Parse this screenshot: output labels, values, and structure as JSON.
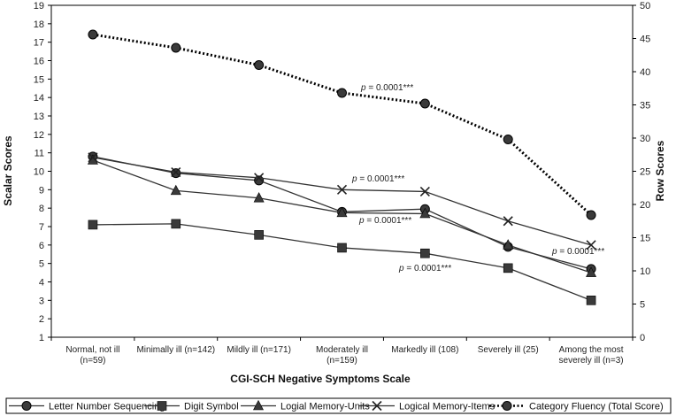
{
  "chart_data": {
    "type": "line",
    "categories": [
      [
        "Normal, not ill",
        "(n=59)"
      ],
      [
        "Minimally ill (n=142)"
      ],
      [
        "Mildly ill (n=171)"
      ],
      [
        "Moderately ill",
        "(n=159)"
      ],
      [
        "Markedly ill (108)"
      ],
      [
        "Severely ill (25)"
      ],
      [
        "Among the most",
        "severely ill (n=3)"
      ]
    ],
    "xlabel": "CGI-SCH  Negative Symptoms Scale",
    "ylabel_left": "Scalar Scores",
    "ylabel_right": "Row Scores",
    "ylim_left": [
      1,
      19
    ],
    "ylim_right": [
      0,
      50
    ],
    "yticks_left": [
      1,
      2,
      3,
      4,
      5,
      6,
      7,
      8,
      9,
      10,
      11,
      12,
      13,
      14,
      15,
      16,
      17,
      18,
      19
    ],
    "yticks_right": [
      0,
      5,
      10,
      15,
      20,
      25,
      30,
      35,
      40,
      45,
      50
    ],
    "series": [
      {
        "name": "Letter  Number Sequencing",
        "axis": "left",
        "marker": "circle",
        "dash": "solid",
        "values": [
          10.8,
          9.9,
          9.5,
          7.8,
          7.95,
          5.9,
          4.7
        ]
      },
      {
        "name": "Digit Symbol",
        "axis": "left",
        "marker": "square",
        "dash": "solid",
        "values": [
          7.1,
          7.15,
          6.55,
          5.85,
          5.55,
          4.75,
          3.0
        ]
      },
      {
        "name": "Logial Memory-Units",
        "axis": "left",
        "marker": "triangle",
        "dash": "solid",
        "values": [
          10.6,
          8.95,
          8.55,
          7.75,
          7.7,
          6.0,
          4.5
        ]
      },
      {
        "name": "Logical Memory-Items",
        "axis": "left",
        "marker": "x",
        "dash": "solid",
        "values": [
          10.75,
          9.95,
          9.65,
          9.0,
          8.9,
          7.3,
          6.0
        ]
      },
      {
        "name": "Category Fluency (Total Score)",
        "axis": "right",
        "marker": "circle",
        "dash": "dotted",
        "values": [
          45.6,
          43.6,
          41.0,
          36.8,
          35.2,
          29.8,
          18.4
        ]
      }
    ],
    "annotations": [
      {
        "prefix": "p",
        "text": " = 0.0001***",
        "series": "Category Fluency (Total Score)"
      },
      {
        "prefix": "p",
        "text": " = 0.0001***",
        "series": "Logical Memory-Items"
      },
      {
        "prefix": "p",
        "text": " = 0.0001***",
        "series": "Letter  Number Sequencing"
      },
      {
        "prefix": "p",
        "text": " = 0.0001***",
        "series": "Digit Symbol"
      },
      {
        "prefix": "p",
        "text": " = 0.0001***",
        "series": "Logical Memory-Items (end)"
      }
    ]
  }
}
